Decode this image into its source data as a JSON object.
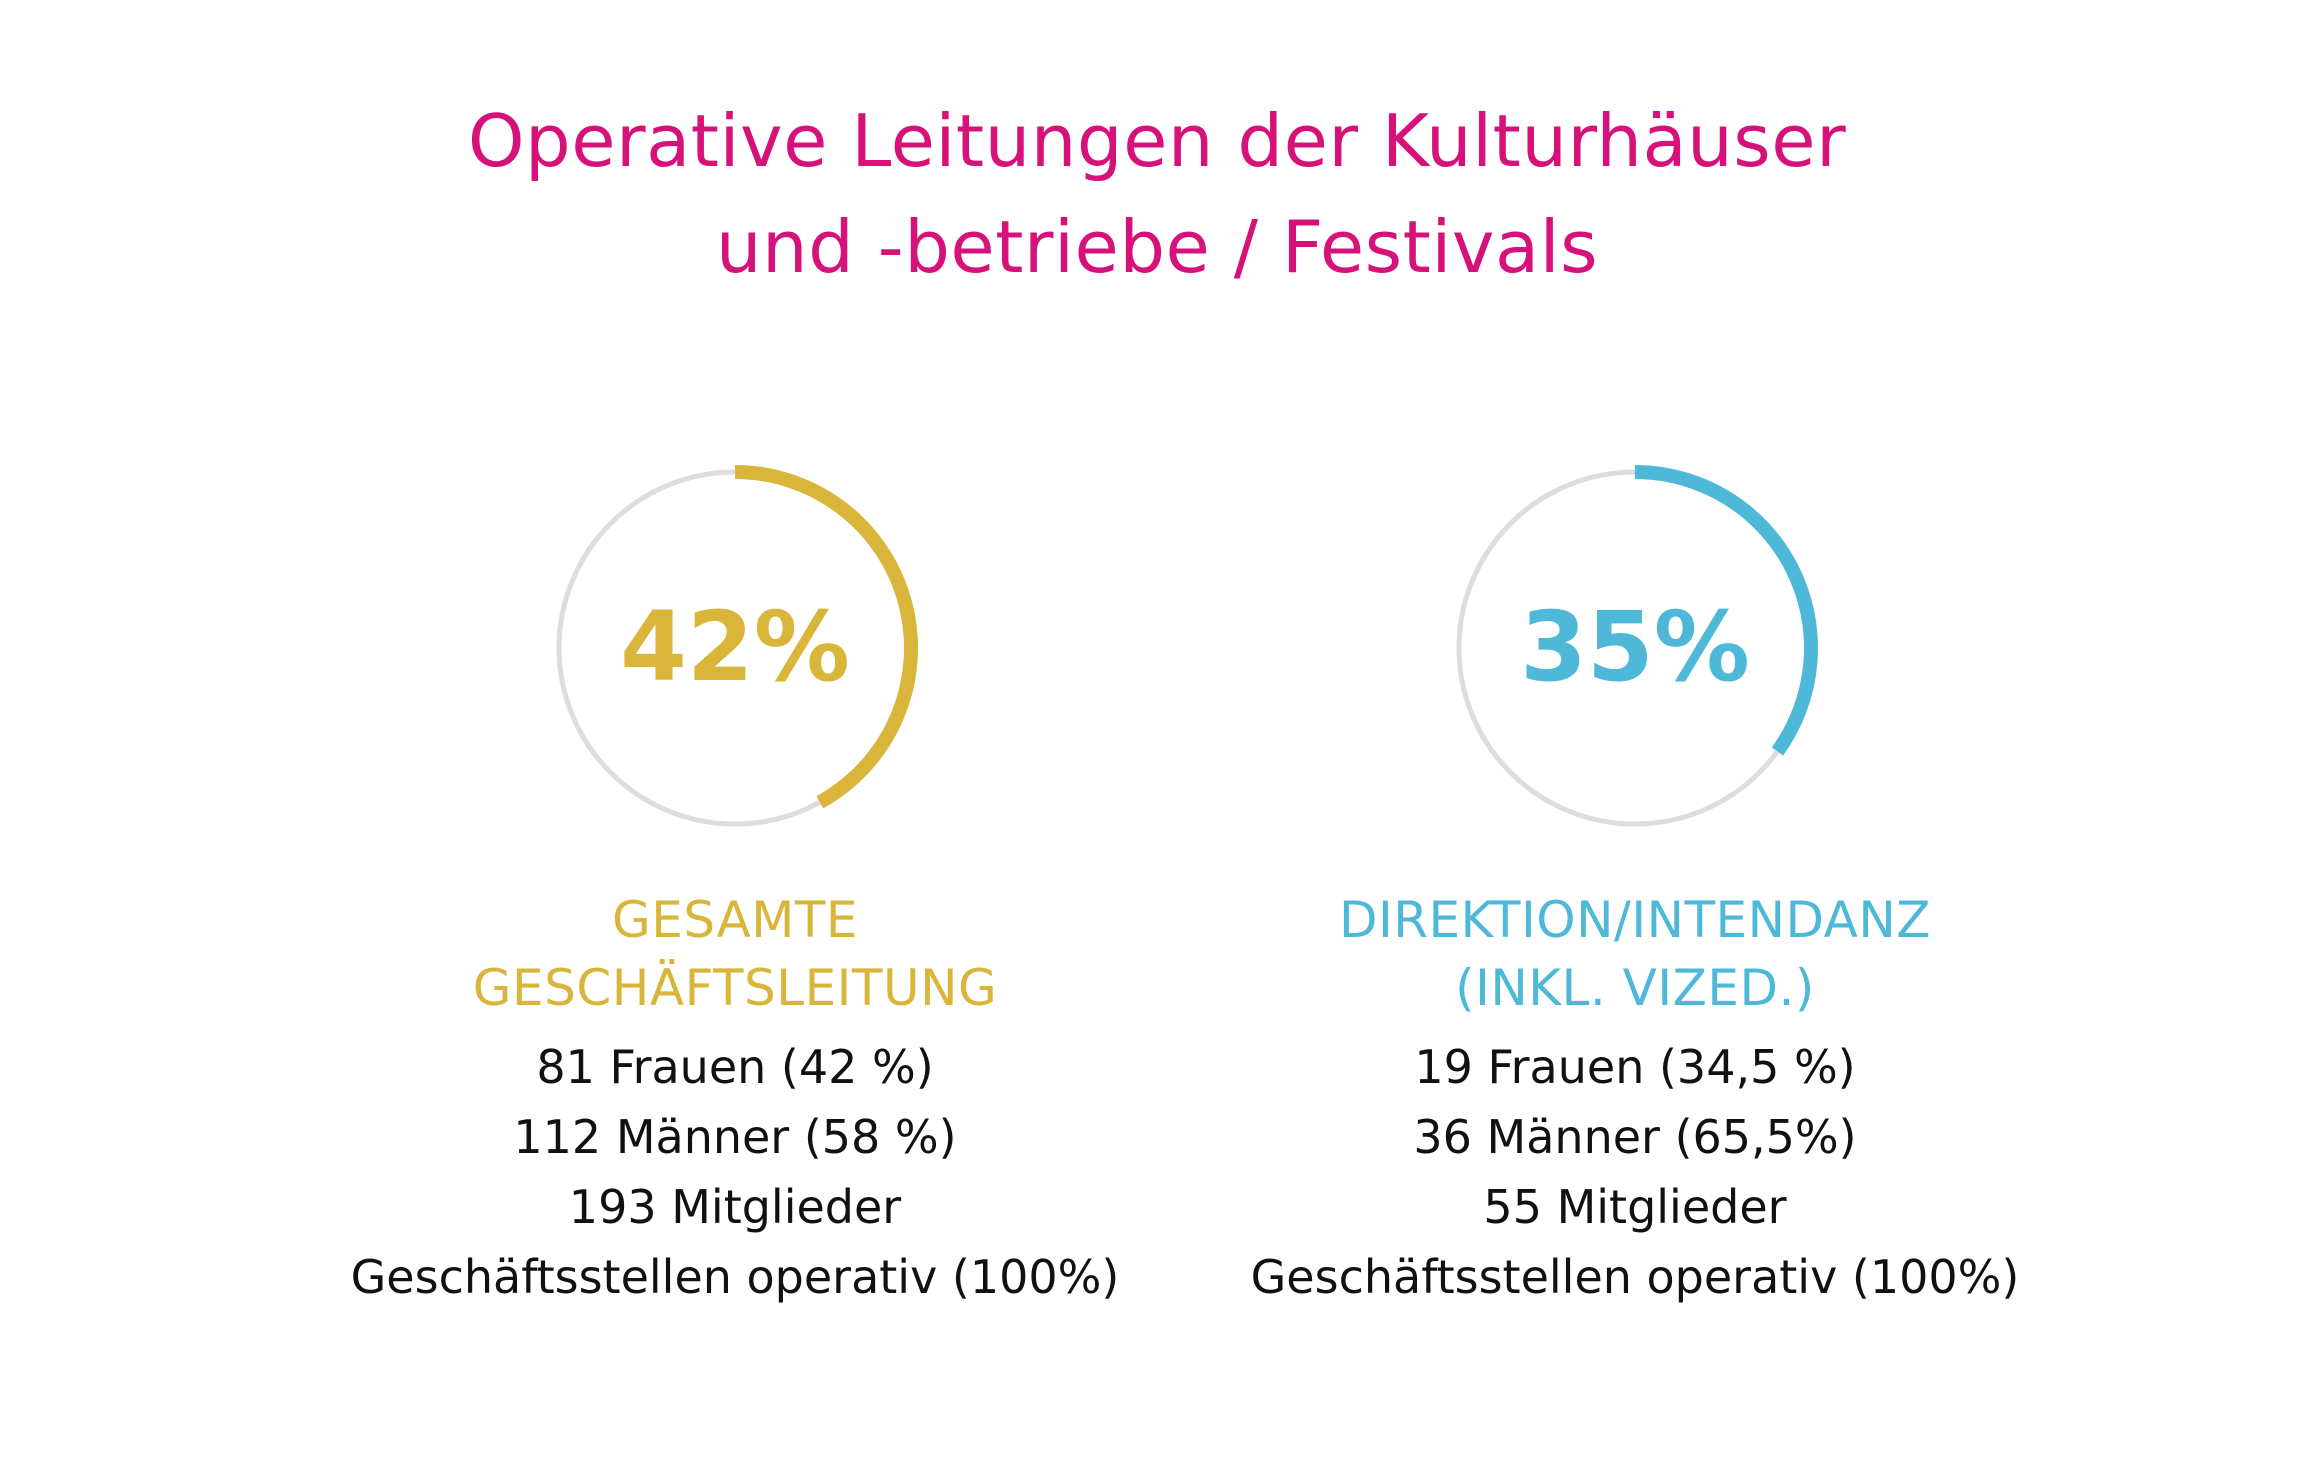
{
  "title": {
    "line1": "Operative Leitungen der Kulturhäuser",
    "line2": "und -betriebe / Festivals"
  },
  "colors": {
    "title": "#d6127a",
    "track": "#dddddd",
    "gold": "#d9b53a",
    "blue": "#4db8d8",
    "text": "#111111"
  },
  "chart_data": [
    {
      "type": "pie",
      "style": "ring",
      "value": 42,
      "max": 100,
      "center_label": "42%",
      "category": [
        "GESAMTE",
        "GESCHÄFTSLEITUNG"
      ],
      "color": "#d9b53a",
      "details": [
        "81 Frauen (42 %)",
        "112 Männer (58 %)",
        "193 Mitglieder",
        "Geschäftsstellen operativ (100%)"
      ]
    },
    {
      "type": "pie",
      "style": "ring",
      "value": 35,
      "max": 100,
      "center_label": "35%",
      "category": [
        "DIREKTION/INTENDANZ",
        "(INKL. VIZED.)"
      ],
      "color": "#4db8d8",
      "details": [
        "19 Frauen (34,5 %)",
        "36 Männer (65,5%)",
        "55 Mitglieder",
        "Geschäftsstellen operativ (100%)"
      ]
    }
  ]
}
